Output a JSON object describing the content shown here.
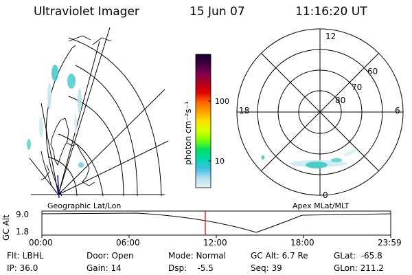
{
  "header": {
    "instrument": "Ultraviolet Imager",
    "date": "15 Jun 07",
    "time": "11:16:20 UT"
  },
  "geo_map": {
    "caption": "Geographic Lat/Lon"
  },
  "colorbar": {
    "unit_label": "photon cm⁻²s⁻¹",
    "ticks": [
      "100",
      "10"
    ],
    "scale": "log",
    "colors": [
      "#1a0030",
      "#400040",
      "#800050",
      "#b00020",
      "#e00000",
      "#ff6000",
      "#ffa000",
      "#ffe000",
      "#d8ff00",
      "#80ff00",
      "#00e060",
      "#00d8b0",
      "#40c0e0",
      "#b0e0f0",
      "#e8f4f8"
    ]
  },
  "polar_plot": {
    "caption": "Apex MLat/MLT",
    "mlt_labels": {
      "top": "12",
      "right": "6",
      "bottom": "0",
      "left": "18"
    },
    "lat_labels": [
      "60",
      "70",
      "80"
    ]
  },
  "altitude_strip": {
    "ylabel": "GC Alt",
    "ymax_label": "9.0",
    "ymin_label": "1.8",
    "time_ticks": [
      "00:00",
      "06:00",
      "12:00",
      "18:00",
      "23:59"
    ],
    "current_time_color": "#cc0000"
  },
  "status": {
    "filter": "Flt: LBHL",
    "ip": "IP: 36.0",
    "door": "Door: Open",
    "gain": "Gain: 14",
    "mode": "Mode: Normal",
    "dsp": "Dsp:    -5.5",
    "gc_alt": "GC Alt: 6.7 Re",
    "seq": "Seq: 39",
    "glat": "GLat:  -65.8",
    "glon": "GLon: 211.2"
  }
}
